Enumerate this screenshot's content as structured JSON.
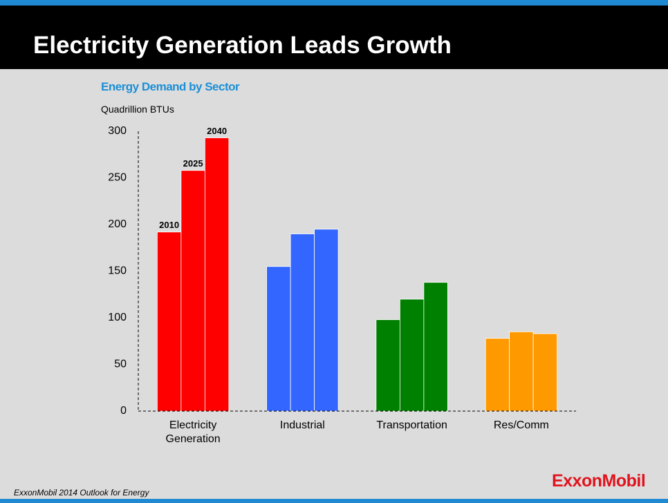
{
  "header": {
    "title": "Electricity Generation Leads Growth"
  },
  "chart_data": {
    "type": "bar",
    "title": "Energy Demand by Sector",
    "y_label": "Quadrillion BTUs",
    "categories": [
      "Electricity Generation",
      "Industrial",
      "Transportation",
      "Res/Comm"
    ],
    "category_colors": [
      "#ff0000",
      "#3366ff",
      "#008000",
      "#ff9900"
    ],
    "series": [
      {
        "name": "2010",
        "values": [
          192,
          155,
          98,
          78
        ]
      },
      {
        "name": "2025",
        "values": [
          258,
          190,
          120,
          85
        ]
      },
      {
        "name": "2040",
        "values": [
          293,
          195,
          138,
          83
        ]
      }
    ],
    "ylim": [
      0,
      300
    ],
    "yticks": [
      0,
      50,
      100,
      150,
      200,
      250,
      300
    ],
    "grid": false
  },
  "footer": {
    "source": "ExxonMobil  2014 Outlook for Energy",
    "logo": "ExxonMobil"
  }
}
